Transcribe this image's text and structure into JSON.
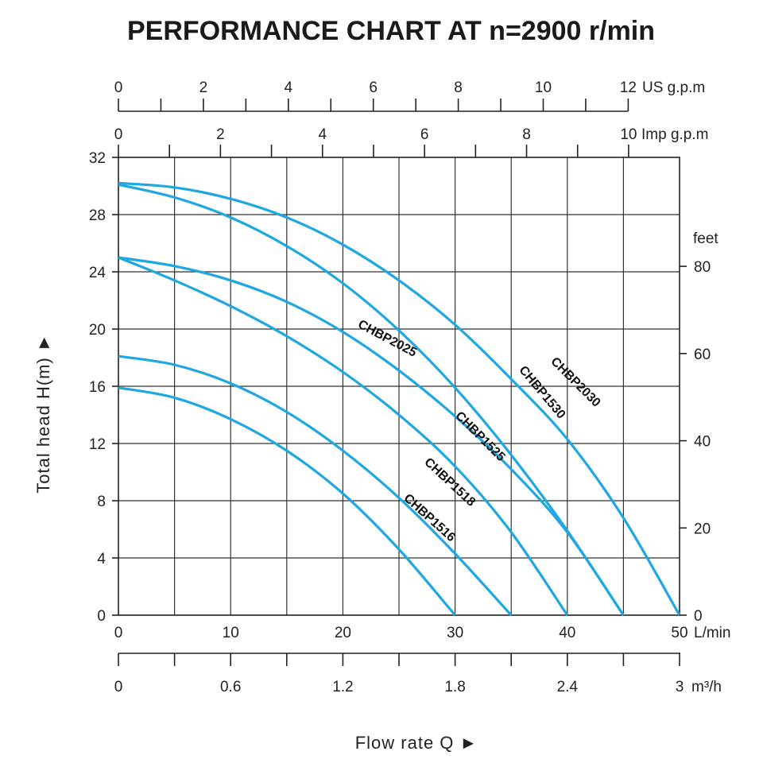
{
  "chart_data": {
    "type": "line",
    "title": "PERFORMANCE CHART AT n=2900 r/min",
    "xlabel": "Flow rate  Q ►",
    "ylabel": "Total  head H(m) ►",
    "curve_color": "#1ea7e0",
    "grid_color": "#333333",
    "xlim": [
      0,
      50
    ],
    "ylim": [
      0,
      32
    ],
    "x_ticks": [
      "0",
      "10",
      "20",
      "30",
      "40",
      "50"
    ],
    "x_unit": "L/min",
    "y_ticks": [
      "0",
      "4",
      "8",
      "12",
      "16",
      "20",
      "24",
      "28",
      "32"
    ],
    "feet_axis": {
      "label": "feet",
      "ticks": [
        "0",
        "20",
        "40",
        "60",
        "80"
      ],
      "values": [
        0,
        20,
        40,
        60,
        80
      ]
    },
    "m3h_axis": {
      "unit": "m³/h",
      "ticks": [
        "0",
        "0.6",
        "1.2",
        "1.8",
        "2.4",
        "3"
      ],
      "values": [
        0,
        0.6,
        1.2,
        1.8,
        2.4,
        3.0
      ]
    },
    "us_gpm_axis": {
      "unit": "US g.p.m",
      "ticks": [
        "0",
        "2",
        "4",
        "6",
        "8",
        "10",
        "12"
      ],
      "values": [
        0,
        2,
        4,
        6,
        8,
        10,
        12
      ]
    },
    "imp_gpm_axis": {
      "unit": "Imp g.p.m",
      "ticks": [
        "0",
        "2",
        "4",
        "6",
        "8",
        "10"
      ],
      "values": [
        0,
        2,
        4,
        6,
        8,
        10
      ]
    },
    "series": [
      {
        "name": "CHBP1516",
        "x": [
          0,
          5,
          10,
          15,
          20,
          25,
          30
        ],
        "y": [
          15.9,
          15.2,
          13.7,
          11.5,
          8.5,
          4.6,
          0
        ]
      },
      {
        "name": "CHBP1518",
        "x": [
          0,
          5,
          10,
          15,
          20,
          25,
          30,
          35
        ],
        "y": [
          18.1,
          17.5,
          16.2,
          14.2,
          11.5,
          8.2,
          4.3,
          0
        ]
      },
      {
        "name": "CHBP1525",
        "x": [
          0,
          5,
          10,
          15,
          20,
          25,
          30,
          35,
          40
        ],
        "y": [
          25.0,
          23.4,
          21.6,
          19.5,
          17.0,
          14.0,
          10.4,
          5.8,
          0
        ]
      },
      {
        "name": "CHBP2025",
        "x": [
          0,
          5,
          10,
          15,
          20,
          25,
          30,
          35,
          40,
          45
        ],
        "y": [
          25.0,
          24.4,
          23.4,
          21.9,
          19.8,
          17.1,
          13.9,
          10.2,
          5.8,
          0
        ]
      },
      {
        "name": "CHBP1530",
        "x": [
          0,
          5,
          10,
          15,
          20,
          25,
          30,
          35,
          40,
          45
        ],
        "y": [
          30.1,
          29.2,
          27.8,
          25.8,
          23.2,
          19.9,
          15.9,
          11.2,
          5.9,
          0
        ]
      },
      {
        "name": "CHBP2030",
        "x": [
          0,
          5,
          10,
          15,
          20,
          25,
          30,
          35,
          40,
          45,
          50
        ],
        "y": [
          30.2,
          29.9,
          29.1,
          27.8,
          25.9,
          23.4,
          20.3,
          16.5,
          12.3,
          6.8,
          0
        ]
      }
    ],
    "labels": [
      {
        "series": "CHBP1516",
        "text": "CHBP1516",
        "x": 27.5,
        "y": 6.6,
        "angle": 42
      },
      {
        "series": "CHBP1518",
        "text": "CHBP1518",
        "x": 29.3,
        "y": 9.1,
        "angle": 43
      },
      {
        "series": "CHBP1525",
        "text": "CHBP1525",
        "x": 32.0,
        "y": 12.3,
        "angle": 45
      },
      {
        "series": "CHBP2025",
        "text": "CHBP2025",
        "x": 23.8,
        "y": 19.1,
        "angle": 28
      },
      {
        "series": "CHBP1530",
        "text": "CHBP1530",
        "x": 37.5,
        "y": 15.4,
        "angle": 50
      },
      {
        "series": "CHBP2030",
        "text": "CHBP2030",
        "x": 40.5,
        "y": 16.1,
        "angle": 45
      }
    ]
  }
}
